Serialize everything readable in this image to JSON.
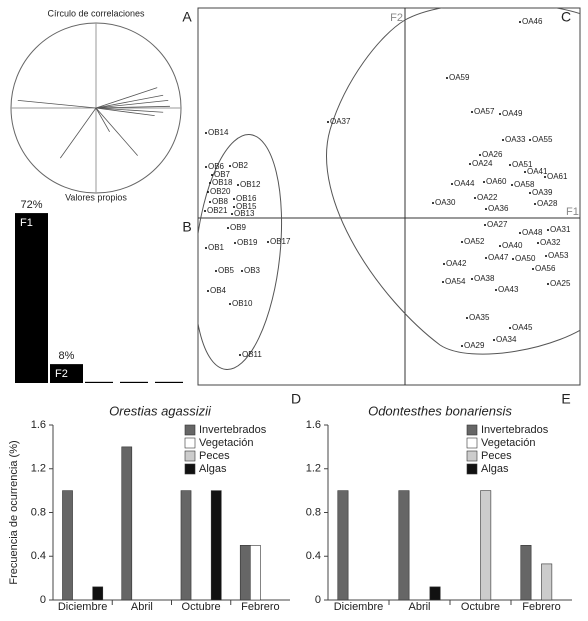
{
  "chart_data": [
    {
      "type": "vectors",
      "title": "Círculo de correlaciones",
      "x": [
        0.72,
        0.79,
        0.85,
        0.87,
        0.79,
        0.69,
        -0.92,
        -0.42,
        0.49,
        0.16
      ],
      "y": [
        0.24,
        0.15,
        0.09,
        0.02,
        -0.05,
        -0.09,
        0.09,
        -0.59,
        -0.56,
        -0.28
      ],
      "xlim": [
        -1,
        1
      ],
      "ylim": [
        -1,
        1
      ],
      "color": "#555555"
    },
    {
      "type": "bar",
      "title": "Valores propios",
      "categories": [
        "F1",
        "F2",
        null,
        null,
        null
      ],
      "values": [
        72,
        8,
        0.5,
        0.5,
        0.5
      ],
      "value_labels": [
        "72%",
        "8%",
        null,
        null,
        null
      ],
      "color": "#000000"
    },
    {
      "type": "scatter",
      "x_label": "F1",
      "y_label": "F2",
      "panel_labels": [
        "A",
        "B",
        "C"
      ],
      "xlim": [
        -2.07,
        1.75
      ],
      "ylim": [
        -1.67,
        2.1
      ],
      "labels": [
        "OA46",
        "OA59",
        "OA57",
        "OA49",
        "OA37",
        "OB14",
        "OA33",
        "OA55",
        "OA26",
        "OA24",
        "OA51",
        "OA41",
        "OA61",
        "OB6",
        "OB2",
        "OB7",
        "OB18",
        "OB12",
        "OB20",
        "OA44",
        "OA60",
        "OA58",
        "OA39",
        "OB16",
        "OB8",
        "OB15",
        "OA30",
        "OA22",
        "OA28",
        "OB21",
        "OB13",
        "OA36",
        "OB9",
        "OA27",
        "OA48",
        "OA31",
        "OB1",
        "OB19",
        "OB17",
        "OA52",
        "OA40",
        "OA32",
        "OA47",
        "OA50",
        "OA53",
        "OA42",
        "OA56",
        "OB5",
        "OB3",
        "OA38",
        "OA54",
        "OA25",
        "OA43",
        "OB4",
        "OB10",
        "OA35",
        "OA45",
        "OA34",
        "OA29",
        "OB11"
      ],
      "x": [
        1.15,
        0.42,
        0.67,
        0.95,
        -0.77,
        -1.99,
        0.98,
        1.25,
        0.75,
        0.65,
        1.05,
        1.2,
        1.4,
        -1.99,
        -1.75,
        -1.93,
        -1.95,
        -1.67,
        -1.97,
        0.47,
        0.79,
        1.07,
        1.25,
        -1.71,
        -1.95,
        -1.71,
        0.28,
        0.7,
        1.3,
        -2.0,
        -1.73,
        0.81,
        -1.77,
        0.8,
        1.15,
        1.43,
        -1.99,
        -1.7,
        -1.37,
        0.57,
        0.95,
        1.33,
        0.81,
        1.08,
        1.41,
        0.39,
        1.28,
        -1.89,
        -1.63,
        0.67,
        0.38,
        1.43,
        0.91,
        -1.97,
        -1.75,
        0.62,
        1.05,
        0.89,
        0.57,
        -1.65
      ],
      "y": [
        1.96,
        1.4,
        1.06,
        1.04,
        0.96,
        0.85,
        0.78,
        0.78,
        0.63,
        0.54,
        0.53,
        0.46,
        0.41,
        0.51,
        0.52,
        0.43,
        0.35,
        0.33,
        0.26,
        0.34,
        0.36,
        0.33,
        0.25,
        0.19,
        0.16,
        0.11,
        0.15,
        0.2,
        0.14,
        0.07,
        0.04,
        0.09,
        -0.1,
        -0.07,
        -0.15,
        -0.12,
        -0.3,
        -0.25,
        -0.24,
        -0.24,
        -0.28,
        -0.25,
        -0.4,
        -0.41,
        -0.38,
        -0.46,
        -0.51,
        -0.53,
        -0.53,
        -0.61,
        -0.64,
        -0.66,
        -0.72,
        -0.73,
        -0.86,
        -1.0,
        -1.1,
        -1.22,
        -1.28,
        -1.37
      ],
      "color": "#000000"
    },
    {
      "type": "bar",
      "title": "Orestias agassizii",
      "panel_labels": [
        "D"
      ],
      "y_label": "Frecuencia de ocurrencia (%)",
      "categories": [
        "Diciembre",
        "Abril",
        "Octubre",
        "Febrero"
      ],
      "series": [
        {
          "name": "Invertebrados",
          "color": "#666666",
          "values": [
            1.0,
            1.4,
            1.0,
            0.5
          ]
        },
        {
          "name": "Vegetación",
          "color": "#ffffff",
          "values": [
            0,
            0,
            0,
            0.5
          ]
        },
        {
          "name": "Peces",
          "color": "#cccccc",
          "values": [
            0,
            0,
            0,
            0
          ]
        },
        {
          "name": "Algas",
          "color": "#111111",
          "values": [
            0.12,
            0,
            1.0,
            0
          ]
        }
      ],
      "ylim": [
        0,
        1.6
      ],
      "yticks": [
        0,
        0.4,
        0.8,
        1.2,
        1.6
      ],
      "legend": "top-right"
    },
    {
      "type": "bar",
      "title": "Odontesthes bonariensis",
      "panel_labels": [
        "E"
      ],
      "categories": [
        "Diciembre",
        "Abril",
        "Octubre",
        "Febrero"
      ],
      "series": [
        {
          "name": "Invertebrados",
          "color": "#666666",
          "values": [
            1.0,
            1.0,
            0,
            0.5
          ]
        },
        {
          "name": "Vegetación",
          "color": "#ffffff",
          "values": [
            0,
            0,
            0,
            0
          ]
        },
        {
          "name": "Peces",
          "color": "#cccccc",
          "values": [
            0,
            0,
            1.0,
            0.33
          ]
        },
        {
          "name": "Algas",
          "color": "#111111",
          "values": [
            0,
            0.12,
            0,
            0
          ]
        }
      ],
      "ylim": [
        0,
        1.6
      ],
      "yticks": [
        0,
        0.4,
        0.8,
        1.2,
        1.6
      ],
      "legend": "top-right"
    }
  ]
}
